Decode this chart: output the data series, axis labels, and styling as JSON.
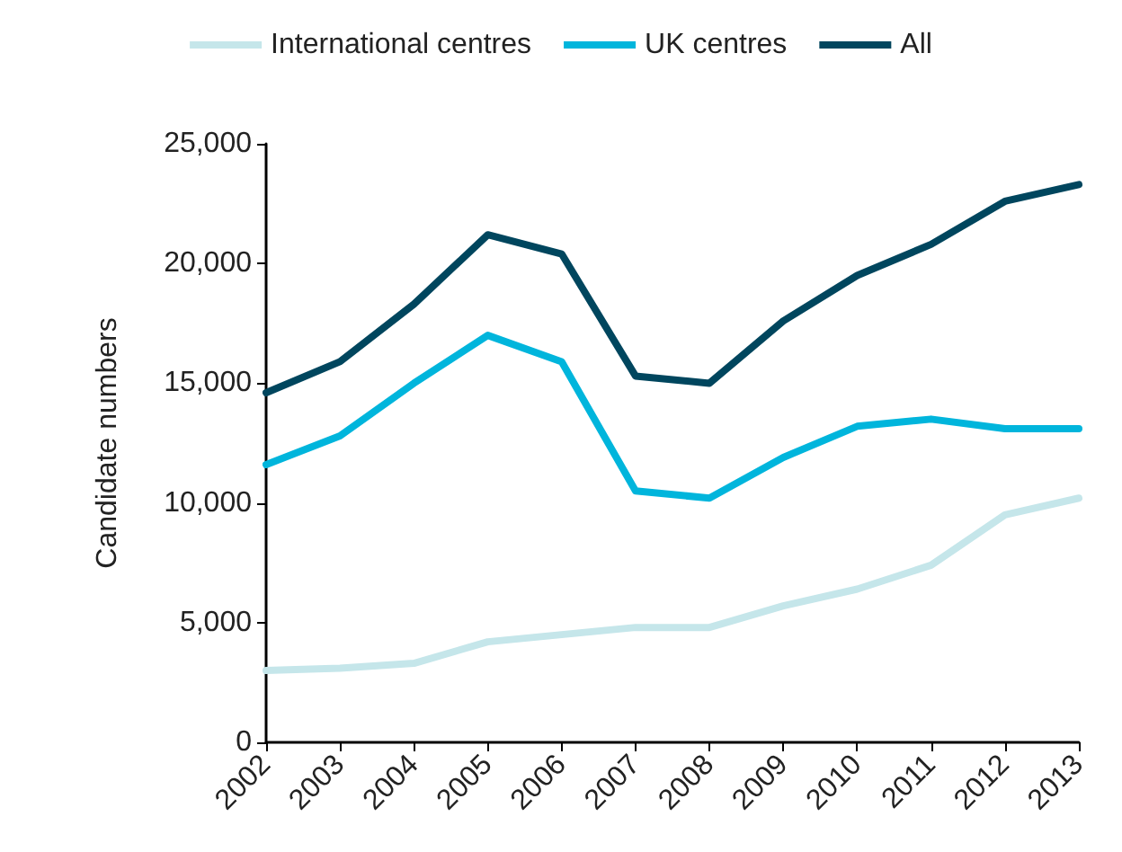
{
  "chart_data": {
    "type": "line",
    "ylabel": "Candidate numbers",
    "categories": [
      "2002",
      "2003",
      "2004",
      "2005",
      "2006",
      "2007",
      "2008",
      "2009",
      "2010",
      "2011",
      "2012",
      "2013"
    ],
    "series": [
      {
        "name": "International centres",
        "color": "#c5e6ea",
        "values": [
          3000,
          3100,
          3300,
          4200,
          4500,
          4800,
          4800,
          5700,
          6400,
          7400,
          9500,
          10200
        ]
      },
      {
        "name": "UK centres",
        "color": "#00b5dc",
        "values": [
          11600,
          12800,
          15000,
          17000,
          15900,
          10500,
          10200,
          11900,
          13200,
          13500,
          13100,
          13100
        ]
      },
      {
        "name": "All",
        "color": "#00465e",
        "values": [
          14600,
          15900,
          18300,
          21200,
          20400,
          15300,
          15000,
          17600,
          19500,
          20800,
          22600,
          23300
        ]
      }
    ],
    "ylim": [
      0,
      25000
    ],
    "yticks": [
      0,
      {
        "value": 5000,
        "label": "5,000"
      },
      {
        "value": 10000,
        "label": "10,000"
      },
      {
        "value": 15000,
        "label": "15,000"
      },
      {
        "value": 20000,
        "label": "20,000"
      },
      {
        "value": 25000,
        "label": "25,000"
      }
    ],
    "grid": false,
    "legend": "top",
    "marker": "none",
    "line_style": "solid"
  }
}
